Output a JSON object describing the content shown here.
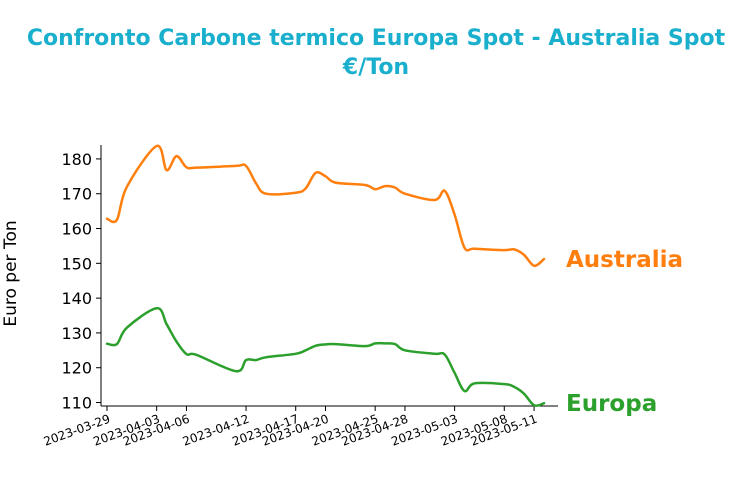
{
  "chart_data": {
    "type": "line",
    "title": "Confronto Carbone termico Europa Spot - Australia Spot",
    "subtitle": "€/Ton",
    "xlabel": "",
    "ylabel": "Euro per Ton",
    "ylim": [
      109,
      184
    ],
    "yticks": [
      110,
      120,
      130,
      140,
      150,
      160,
      170,
      180
    ],
    "x": [
      "2023-03-29",
      "2023-03-30",
      "2023-03-31",
      "2023-04-03",
      "2023-04-04",
      "2023-04-05",
      "2023-04-06",
      "2023-04-07",
      "2023-04-11",
      "2023-04-12",
      "2023-04-13",
      "2023-04-14",
      "2023-04-17",
      "2023-04-18",
      "2023-04-19",
      "2023-04-20",
      "2023-04-21",
      "2023-04-24",
      "2023-04-25",
      "2023-04-26",
      "2023-04-27",
      "2023-04-28",
      "2023-05-01",
      "2023-05-02",
      "2023-05-03",
      "2023-05-04",
      "2023-05-05",
      "2023-05-08",
      "2023-05-09",
      "2023-05-10",
      "2023-05-11",
      "2023-05-12"
    ],
    "xticks": [
      "2023-03-29",
      "2023-04-03",
      "2023-04-06",
      "2023-04-12",
      "2023-04-17",
      "2023-04-20",
      "2023-04-25",
      "2023-04-28",
      "2023-05-03",
      "2023-05-08",
      "2023-05-11"
    ],
    "series": [
      {
        "name": "Australia",
        "color": "#ff7f0e",
        "values": [
          162.8,
          162.5,
          172.0,
          183.7,
          176.8,
          180.8,
          177.6,
          177.5,
          178.0,
          178.0,
          173.0,
          170.0,
          170.3,
          171.5,
          176.0,
          175.0,
          173.2,
          172.5,
          171.3,
          172.2,
          171.8,
          170.0,
          168.2,
          170.8,
          164.0,
          154.5,
          154.2,
          153.8,
          154.0,
          152.4,
          149.3,
          151.2
        ]
      },
      {
        "name": "Europa",
        "color": "#2ca02c",
        "values": [
          126.9,
          126.8,
          131.5,
          137.1,
          132.5,
          127.5,
          123.9,
          123.7,
          119.0,
          122.2,
          122.2,
          123.0,
          124.0,
          125.0,
          126.3,
          126.7,
          126.8,
          126.2,
          127.0,
          127.0,
          126.8,
          125.0,
          124.0,
          123.8,
          118.5,
          113.3,
          115.5,
          115.3,
          114.5,
          112.5,
          109.2,
          109.8
        ]
      }
    ],
    "grid": false,
    "legend": "none"
  }
}
